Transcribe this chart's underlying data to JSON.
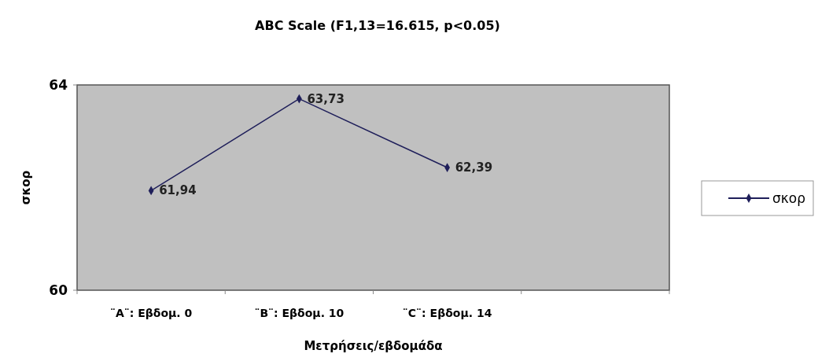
{
  "chart_data": {
    "type": "line",
    "title": "ABC Scale (F1,13=16.615, p<0.05)",
    "xlabel": "Μετρήσεις/εβδομάδα",
    "ylabel": "σκορ",
    "categories": [
      "¨A¨: Εβδομ. 0",
      "¨B¨: Εβδομ. 10",
      "¨C¨: Εβδομ. 14",
      null
    ],
    "series": [
      {
        "name": "σκορ",
        "color": "#1f1f5a",
        "values": [
          61.94,
          63.73,
          62.39,
          null
        ]
      }
    ],
    "value_labels": [
      "61,94",
      "63,73",
      "62,39",
      null
    ],
    "ylim": [
      60,
      64
    ],
    "yticks": [
      60,
      64
    ],
    "grid": false,
    "legend": "right",
    "marker": "diamond",
    "line_style": "solid"
  }
}
